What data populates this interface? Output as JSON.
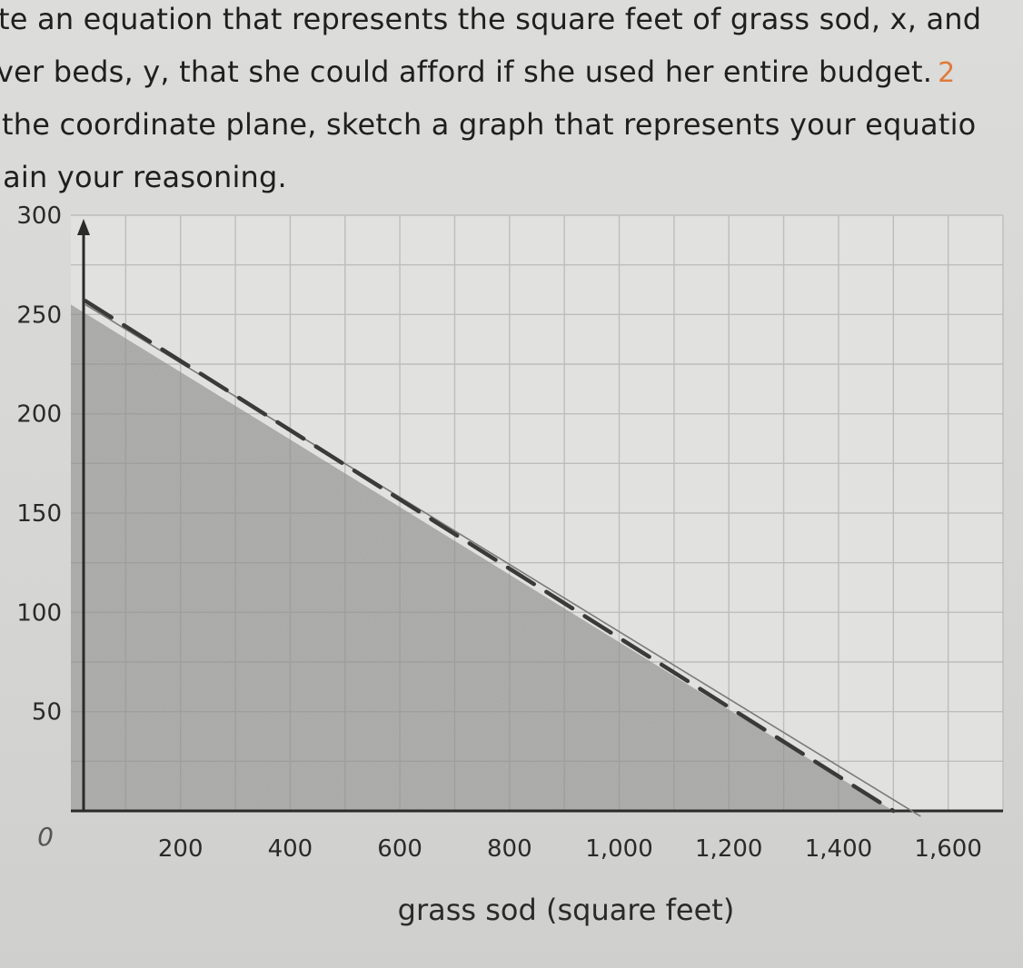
{
  "question": {
    "lines": [
      "te an equation that represents the square feet of grass sod, x, and",
      "ver beds, y, that she could afford if she used her entire budget.",
      "the coordinate plane, sketch a graph that represents your equatio",
      "lain your reasoning."
    ],
    "handwritten_annotation": "2"
  },
  "chart_data": {
    "type": "line",
    "xlabel": "grass sod (square feet)",
    "ylabel": "",
    "xlim": [
      0,
      1700
    ],
    "ylim": [
      0,
      300
    ],
    "x_ticks": [
      200,
      400,
      600,
      800,
      1000,
      1200,
      1400,
      1600
    ],
    "x_tick_labels": [
      "200",
      "400",
      "600",
      "800",
      "1,000",
      "1,200",
      "1,400",
      "1,600"
    ],
    "y_ticks": [
      50,
      100,
      150,
      200,
      250,
      300
    ],
    "y_tick_labels": [
      "50",
      "100",
      "150",
      "200",
      "250",
      "300"
    ],
    "origin_label": "0",
    "grid": true,
    "series": [
      {
        "style": "dashed, shaded below",
        "x": [
          0,
          1500
        ],
        "y": [
          255,
          0
        ]
      }
    ]
  },
  "colors": {
    "line": "#3a3a3a",
    "grid": "#bdbdbb",
    "shade": "#9a9a98",
    "paper": "#dcdcda"
  }
}
